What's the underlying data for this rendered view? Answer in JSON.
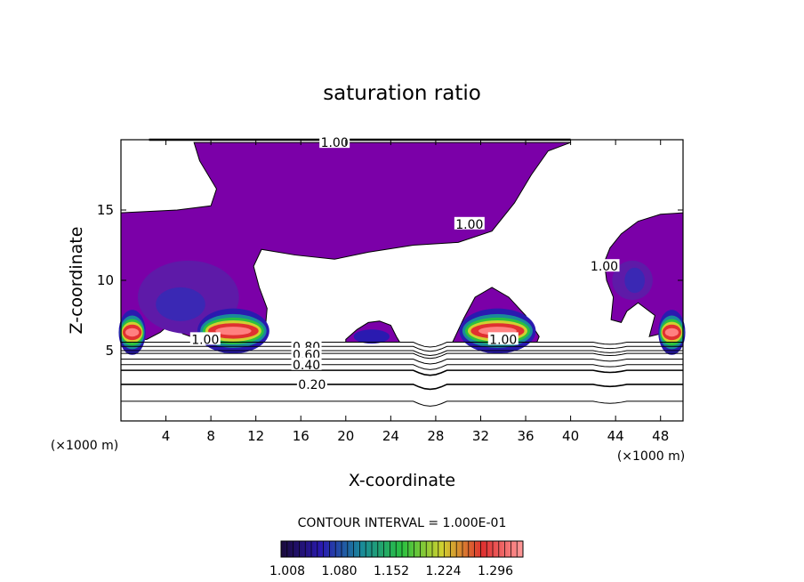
{
  "chart_data": {
    "type": "heatmap",
    "title": "saturation ratio",
    "xlabel": "X-coordinate",
    "ylabel": "Z-coordinate",
    "x_unit": "(×1000 m)",
    "z_unit": "(×1000 m)",
    "xlim": [
      0,
      50
    ],
    "ylim": [
      0,
      20
    ],
    "x_ticks": [
      4,
      8,
      12,
      16,
      20,
      24,
      28,
      32,
      36,
      40,
      44,
      48
    ],
    "y_ticks": [
      5,
      10,
      15
    ],
    "contour_interval_text": "CONTOUR INTERVAL = 1.000E-01",
    "colorbar": {
      "ticks": [
        "1.008",
        "1.080",
        "1.152",
        "1.224",
        "1.296"
      ],
      "colors": [
        "#1a0a3a",
        "#2a1ab0",
        "#1a8a9a",
        "#2ac040",
        "#d0d030",
        "#e03030",
        "#ff9a9a"
      ]
    },
    "contour_labels": [
      {
        "text": "1.00",
        "x": 19,
        "y": 19.8
      },
      {
        "text": "1.00",
        "x": 31,
        "y": 14
      },
      {
        "text": "1.00",
        "x": 43,
        "y": 11
      },
      {
        "text": "1.00",
        "x": 7.5,
        "y": 5.8
      },
      {
        "text": "1.00",
        "x": 34,
        "y": 5.8
      },
      {
        "text": "0.80",
        "x": 16.5,
        "y": 5.3
      },
      {
        "text": "0.60",
        "x": 16.5,
        "y": 4.7
      },
      {
        "text": "0.40",
        "x": 16.5,
        "y": 4.0
      },
      {
        "text": "0.20",
        "x": 17,
        "y": 2.6
      }
    ],
    "humid_bands": [
      1.4,
      2.6,
      3.6,
      4.0,
      4.4,
      4.8,
      5.0,
      5.3,
      5.6
    ],
    "bands_labeled": [
      "0.20",
      "0.40",
      "0.60",
      "0.80"
    ]
  }
}
